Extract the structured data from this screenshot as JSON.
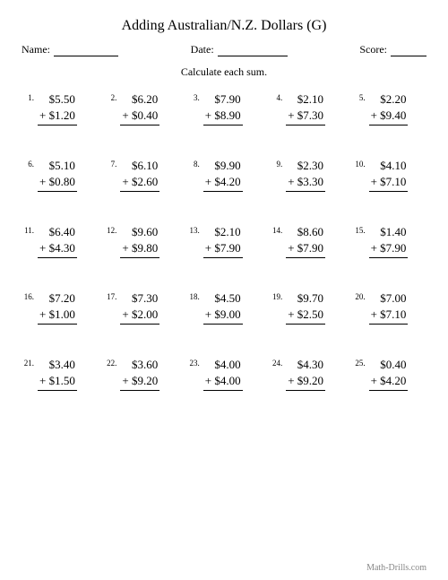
{
  "title": "Adding Australian/N.Z. Dollars (G)",
  "labels": {
    "name": "Name:",
    "date": "Date:",
    "score": "Score:"
  },
  "instruction": "Calculate each sum.",
  "footer": "Math-Drills.com",
  "layout": {
    "name_line_width": 72,
    "date_line_width": 78,
    "score_line_width": 40
  },
  "colors": {
    "background": "#ffffff",
    "text": "#000000",
    "footer": "#888888",
    "rule": "#000000"
  },
  "problems": [
    {
      "n": "1.",
      "a": "$5.50",
      "b": "+ $1.20"
    },
    {
      "n": "2.",
      "a": "$6.20",
      "b": "+ $0.40"
    },
    {
      "n": "3.",
      "a": "$7.90",
      "b": "+ $8.90"
    },
    {
      "n": "4.",
      "a": "$2.10",
      "b": "+ $7.30"
    },
    {
      "n": "5.",
      "a": "$2.20",
      "b": "+ $9.40"
    },
    {
      "n": "6.",
      "a": "$5.10",
      "b": "+ $0.80"
    },
    {
      "n": "7.",
      "a": "$6.10",
      "b": "+ $2.60"
    },
    {
      "n": "8.",
      "a": "$9.90",
      "b": "+ $4.20"
    },
    {
      "n": "9.",
      "a": "$2.30",
      "b": "+ $3.30"
    },
    {
      "n": "10.",
      "a": "$4.10",
      "b": "+ $7.10"
    },
    {
      "n": "11.",
      "a": "$6.40",
      "b": "+ $4.30"
    },
    {
      "n": "12.",
      "a": "$9.60",
      "b": "+ $9.80"
    },
    {
      "n": "13.",
      "a": "$2.10",
      "b": "+ $7.90"
    },
    {
      "n": "14.",
      "a": "$8.60",
      "b": "+ $7.90"
    },
    {
      "n": "15.",
      "a": "$1.40",
      "b": "+ $7.90"
    },
    {
      "n": "16.",
      "a": "$7.20",
      "b": "+ $1.00"
    },
    {
      "n": "17.",
      "a": "$7.30",
      "b": "+ $2.00"
    },
    {
      "n": "18.",
      "a": "$4.50",
      "b": "+ $9.00"
    },
    {
      "n": "19.",
      "a": "$9.70",
      "b": "+ $2.50"
    },
    {
      "n": "20.",
      "a": "$7.00",
      "b": "+ $7.10"
    },
    {
      "n": "21.",
      "a": "$3.40",
      "b": "+ $1.50"
    },
    {
      "n": "22.",
      "a": "$3.60",
      "b": "+ $9.20"
    },
    {
      "n": "23.",
      "a": "$4.00",
      "b": "+ $4.00"
    },
    {
      "n": "24.",
      "a": "$4.30",
      "b": "+ $9.20"
    },
    {
      "n": "25.",
      "a": "$0.40",
      "b": "+ $4.20"
    }
  ]
}
